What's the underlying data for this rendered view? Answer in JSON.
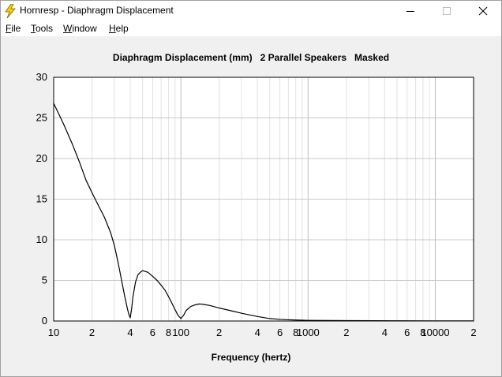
{
  "window": {
    "title": "Hornresp - Diaphragm Displacement",
    "icon": "lightning-bolt-icon",
    "controls": [
      "minimize-icon",
      "maximize-icon",
      "close-icon"
    ]
  },
  "menu": {
    "items": [
      {
        "label": "File",
        "accel": "F",
        "rest": "ile"
      },
      {
        "label": "Tools",
        "accel": "T",
        "rest": "ools"
      },
      {
        "label": "Window",
        "accel": "W",
        "rest": "indow"
      },
      {
        "label": "Help",
        "accel": "H",
        "rest": "elp"
      }
    ]
  },
  "chart_data": {
    "type": "line",
    "title": "Diaphragm Displacement (mm)   2 Parallel Speakers   Masked",
    "xlabel": "Frequency (hertz)",
    "ylabel": "",
    "x_scale": "log",
    "xlim": [
      10,
      20000
    ],
    "ylim": [
      0,
      30
    ],
    "grid": true,
    "y_ticks": [
      0,
      5,
      10,
      15,
      20,
      25,
      30
    ],
    "x_tick_labels": [
      {
        "value": 10,
        "label": "10"
      },
      {
        "value": 20,
        "label": "2"
      },
      {
        "value": 40,
        "label": "4"
      },
      {
        "value": 60,
        "label": "6"
      },
      {
        "value": 80,
        "label": "8"
      },
      {
        "value": 100,
        "label": "100"
      },
      {
        "value": 200,
        "label": "2"
      },
      {
        "value": 400,
        "label": "4"
      },
      {
        "value": 600,
        "label": "6"
      },
      {
        "value": 800,
        "label": "8"
      },
      {
        "value": 1000,
        "label": "1000"
      },
      {
        "value": 2000,
        "label": "2"
      },
      {
        "value": 4000,
        "label": "4"
      },
      {
        "value": 6000,
        "label": "6"
      },
      {
        "value": 8000,
        "label": "8"
      },
      {
        "value": 10000,
        "label": "10000"
      },
      {
        "value": 20000,
        "label": "2"
      }
    ],
    "series": [
      {
        "color": "#000000",
        "x": [
          10,
          12,
          14,
          16,
          18,
          20,
          22,
          25,
          28,
          30,
          32,
          34,
          36,
          38,
          39,
          40,
          41,
          42,
          44,
          46,
          48,
          50,
          55,
          60,
          65,
          70,
          75,
          80,
          85,
          90,
          95,
          100,
          105,
          110,
          120,
          130,
          140,
          150,
          170,
          200,
          250,
          300,
          400,
          500,
          600,
          700,
          800,
          900,
          1000,
          2000,
          5000,
          10000,
          20000
        ],
        "y": [
          26.8,
          24.2,
          21.8,
          19.5,
          17.3,
          15.8,
          14.5,
          12.8,
          10.9,
          9.3,
          7.3,
          5.2,
          3.2,
          1.5,
          0.8,
          0.4,
          1.5,
          3.0,
          4.8,
          5.7,
          6.0,
          6.2,
          6.0,
          5.5,
          5.0,
          4.4,
          3.8,
          3.0,
          2.2,
          1.4,
          0.7,
          0.3,
          0.7,
          1.3,
          1.8,
          2.0,
          2.1,
          2.05,
          1.9,
          1.6,
          1.25,
          0.95,
          0.55,
          0.3,
          0.2,
          0.15,
          0.12,
          0.1,
          0.08,
          0.05,
          0.03,
          0.02,
          0.02
        ]
      }
    ]
  }
}
